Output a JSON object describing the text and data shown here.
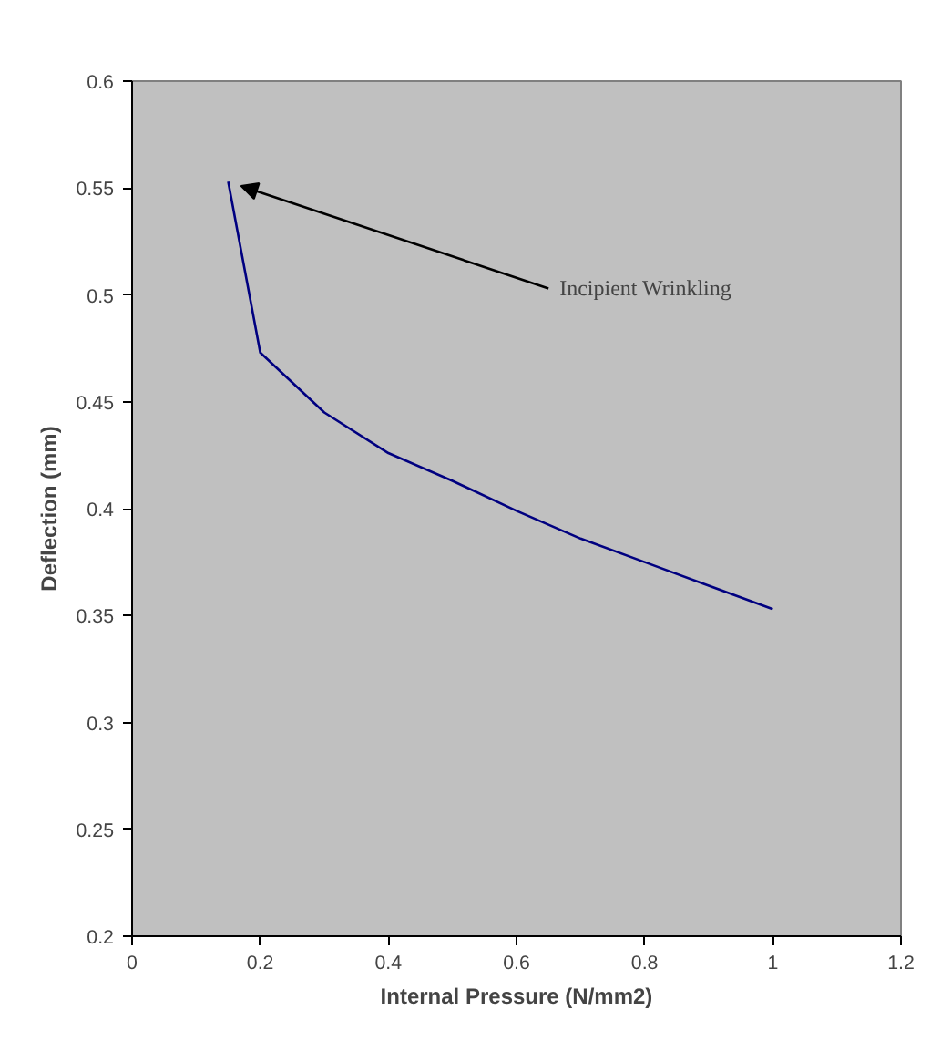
{
  "chart_data": {
    "type": "line",
    "xlabel": "Internal Pressure (N/mm2)",
    "ylabel": "Deflection (mm)",
    "x": [
      0.15,
      0.2,
      0.3,
      0.4,
      0.5,
      0.6,
      0.7,
      0.8,
      0.9,
      1.0
    ],
    "series": [
      {
        "color": "#000080",
        "values": [
          0.553,
          0.473,
          0.445,
          0.426,
          0.413,
          0.399,
          0.386,
          0.375,
          0.364,
          0.353
        ]
      }
    ],
    "xlim": [
      0,
      1.2
    ],
    "xticks": [
      0,
      0.2,
      0.4,
      0.6,
      0.8,
      1,
      1.2
    ],
    "ylim": [
      0.2,
      0.6
    ],
    "yticks": [
      0.2,
      0.25,
      0.3,
      0.35,
      0.4,
      0.45,
      0.5,
      0.55,
      0.6
    ],
    "annotations": [
      {
        "text": "Incipient Wrinkling",
        "x": 0.15,
        "y": 0.553
      }
    ],
    "grid": false,
    "marker": "none",
    "line_style": "solid"
  }
}
